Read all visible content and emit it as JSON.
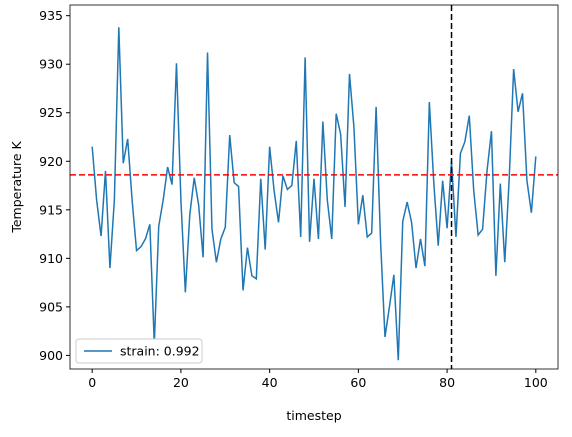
{
  "chart_data": {
    "type": "line",
    "xlabel": "timestep",
    "ylabel": "Temperature K",
    "x": [
      0,
      1,
      2,
      3,
      4,
      5,
      6,
      7,
      8,
      9,
      10,
      11,
      12,
      13,
      14,
      15,
      16,
      17,
      18,
      19,
      20,
      21,
      22,
      23,
      24,
      25,
      26,
      27,
      28,
      29,
      30,
      31,
      32,
      33,
      34,
      35,
      36,
      37,
      38,
      39,
      40,
      41,
      42,
      43,
      44,
      45,
      46,
      47,
      48,
      49,
      50,
      51,
      52,
      53,
      54,
      55,
      56,
      57,
      58,
      59,
      60,
      61,
      62,
      63,
      64,
      65,
      66,
      67,
      68,
      69,
      70,
      71,
      72,
      73,
      74,
      75,
      76,
      77,
      78,
      79,
      80,
      81,
      82,
      83,
      84,
      85,
      86,
      87,
      88,
      89,
      90,
      91,
      92,
      93,
      94,
      95,
      96,
      97,
      98,
      99,
      100
    ],
    "series": [
      {
        "name": "strain: 0.992",
        "color": "#1f77b4",
        "values": [
          921.5,
          916,
          912.3,
          919,
          909,
          916,
          933.8,
          919.8,
          922.3,
          916,
          910.8,
          911.2,
          912,
          913.5,
          901.2,
          913.3,
          916,
          919.4,
          917.6,
          930.1,
          916,
          906.5,
          914.5,
          918.3,
          915.5,
          910.1,
          931.2,
          913,
          909.6,
          912,
          913.2,
          922.7,
          917.8,
          917.4,
          906.7,
          911.1,
          908.2,
          907.9,
          918.2,
          910.9,
          921.5,
          917,
          913.7,
          918.5,
          917.1,
          917.5,
          922.1,
          912.2,
          930.7,
          911.7,
          918.2,
          912,
          924.1,
          916,
          912,
          924.9,
          922.8,
          915.3,
          929,
          923.5,
          913.5,
          916.5,
          912.2,
          912.6,
          925.6,
          911.8,
          901.9,
          905,
          908.3,
          899.5,
          913.8,
          915.8,
          913.7,
          909,
          912,
          909.2,
          926.1,
          917.8,
          911.3,
          918,
          913.1,
          920,
          912.2,
          920.8,
          922,
          924.7,
          917,
          912.4,
          913,
          919,
          923.1,
          908.2,
          917.7,
          909.6,
          918.2,
          929.5,
          925.1,
          927,
          918,
          914.7,
          920.5
        ]
      }
    ],
    "hline": {
      "y": 918.6,
      "color": "#ff0000"
    },
    "vline": {
      "x": 81,
      "color": "#000000"
    },
    "xlim": [
      -5,
      105
    ],
    "ylim": [
      898.6,
      936.1
    ],
    "xticks": [
      0,
      20,
      40,
      60,
      80,
      100
    ],
    "yticks": [
      900,
      905,
      910,
      915,
      920,
      925,
      930,
      935
    ],
    "legend": "lower left"
  }
}
